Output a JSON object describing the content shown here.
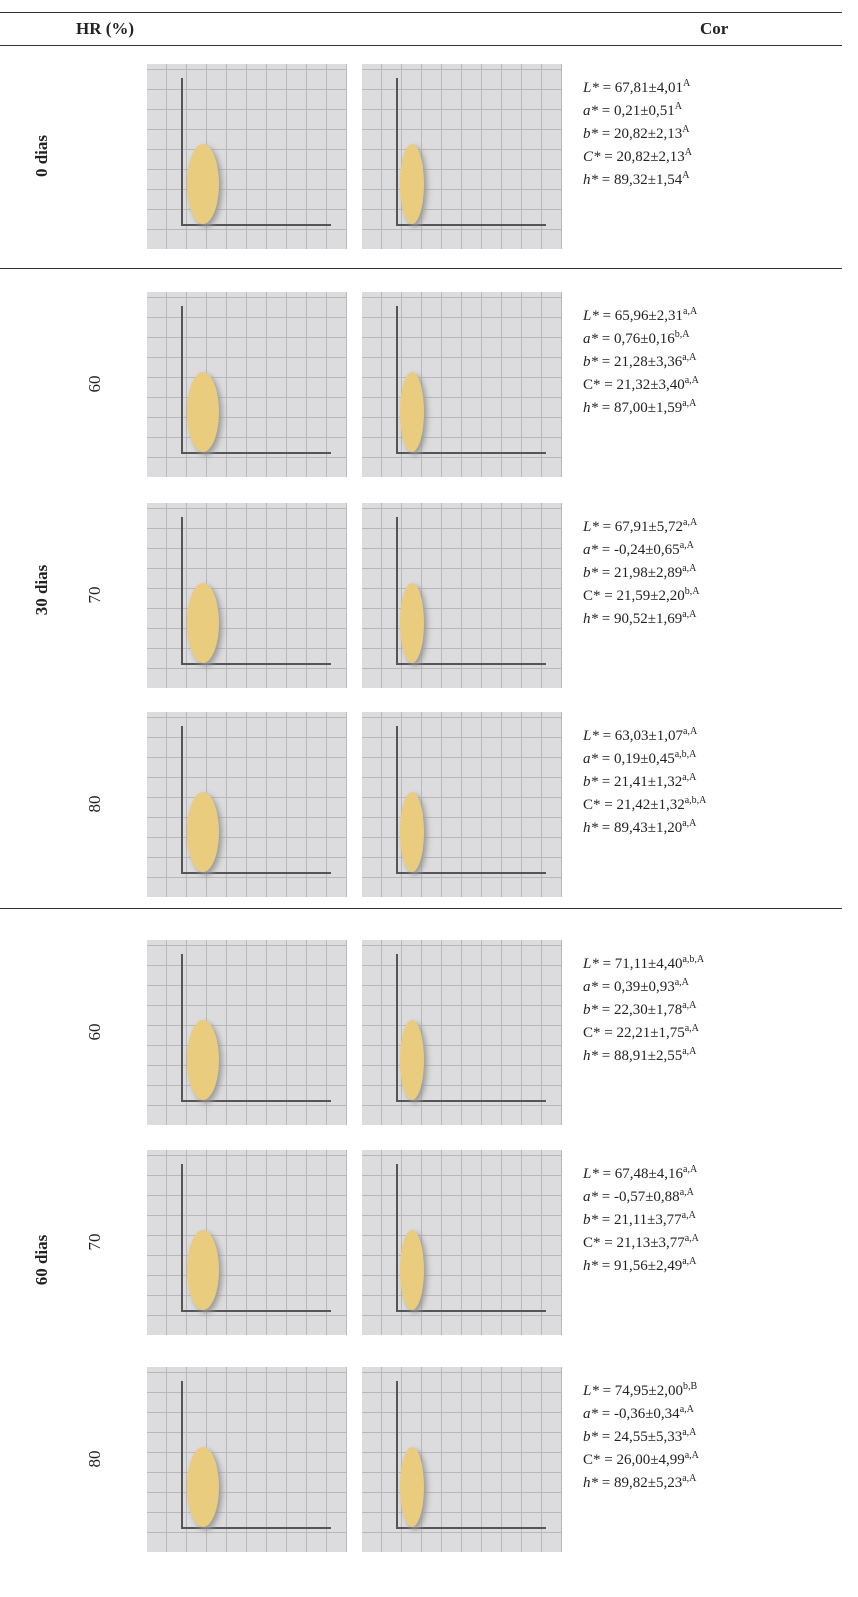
{
  "header": {
    "hr": "HR (%)",
    "color": "Cor"
  },
  "groups": [
    {
      "label": "0 dias",
      "rows": [
        {
          "values": [
            {
              "var": "L*",
              "text": "= 67,81±4,01",
              "sup": "A"
            },
            {
              "var": "a*",
              "text": "= 0,21±0,51",
              "sup": "A"
            },
            {
              "var": "b*",
              "text": "= 20,82±2,13",
              "sup": "A"
            },
            {
              "var": "C*",
              "text": "= 20,82±2,13",
              "sup": "A"
            },
            {
              "var": "h*",
              "text": "= 89,32±1,54",
              "sup": "A"
            }
          ]
        }
      ]
    },
    {
      "label": "30 dias",
      "rows": [
        {
          "hr": "60",
          "values": [
            {
              "var": "L*",
              "text": "= 65,96±2,31",
              "sup": "a,A"
            },
            {
              "var": "a*",
              "text": "= 0,76±0,16",
              "sup": "b,A"
            },
            {
              "var": "b*",
              "text": "= 21,28±3,36",
              "sup": "a,A"
            },
            {
              "var": "C*",
              "text": "= 21,32±3,40",
              "sup": "a,A"
            },
            {
              "var": "h*",
              "text": "= 87,00±1,59",
              "sup": "a,A"
            }
          ]
        },
        {
          "hr": "70",
          "values": [
            {
              "var": "L*",
              "text": "= 67,91±5,72",
              "sup": "a,A"
            },
            {
              "var": "a*",
              "text": "= -0,24±0,65",
              "sup": "a,A"
            },
            {
              "var": "b*",
              "text": "= 21,98±2,89",
              "sup": "a,A"
            },
            {
              "var": "C*",
              "text": "= 21,59±2,20",
              "sup": "b,A"
            },
            {
              "var": "h*",
              "text": "= 90,52±1,69",
              "sup": "a,A"
            }
          ]
        },
        {
          "hr": "80",
          "values": [
            {
              "var": "L*",
              "text": "= 63,03±1,07",
              "sup": "a,A"
            },
            {
              "var": "a*",
              "text": "= 0,19±0,45",
              "sup": "a,b,A"
            },
            {
              "var": "b*",
              "text": "= 21,41±1,32",
              "sup": "a,A"
            },
            {
              "var": "C*",
              "text": "= 21,42±1,32",
              "sup": "a,b,A"
            },
            {
              "var": "h*",
              "text": "= 89,43±1,20",
              "sup": "a,A"
            }
          ]
        }
      ]
    },
    {
      "label": "60 dias",
      "rows": [
        {
          "hr": "60",
          "values": [
            {
              "var": "L*",
              "text": "= 71,11±4,40",
              "sup": "a,b,A"
            },
            {
              "var": "a*",
              "text": "= 0,39±0,93",
              "sup": "a,A"
            },
            {
              "var": "b*",
              "text": "= 22,30±1,78",
              "sup": "a,A"
            },
            {
              "var": "C*",
              "text": "= 22,21±1,75",
              "sup": "a,A"
            },
            {
              "var": "h*",
              "text": "= 88,91±2,55",
              "sup": "a,A"
            }
          ]
        },
        {
          "hr": "70",
          "values": [
            {
              "var": "L*",
              "text": "= 67,48±4,16",
              "sup": "a,A"
            },
            {
              "var": "a*",
              "text": "= -0,57±0,88",
              "sup": "a,A"
            },
            {
              "var": "b*",
              "text": "= 21,11±3,77",
              "sup": "a,A"
            },
            {
              "var": "C*",
              "text": "= 21,13±3,77",
              "sup": "a,A"
            },
            {
              "var": "h*",
              "text": "= 91,56±2,49",
              "sup": "a,A"
            }
          ]
        },
        {
          "hr": "80",
          "values": [
            {
              "var": "L*",
              "text": "= 74,95±2,00",
              "sup": "b,B"
            },
            {
              "var": "a*",
              "text": "= -0,36±0,34",
              "sup": "a,A"
            },
            {
              "var": "b*",
              "text": "= 24,55±5,33",
              "sup": "a,A"
            },
            {
              "var": "C*",
              "text": "= 26,00±4,99",
              "sup": "a,A"
            },
            {
              "var": "h*",
              "text": "= 89,82±5,23",
              "sup": "a,A"
            }
          ]
        }
      ]
    }
  ]
}
